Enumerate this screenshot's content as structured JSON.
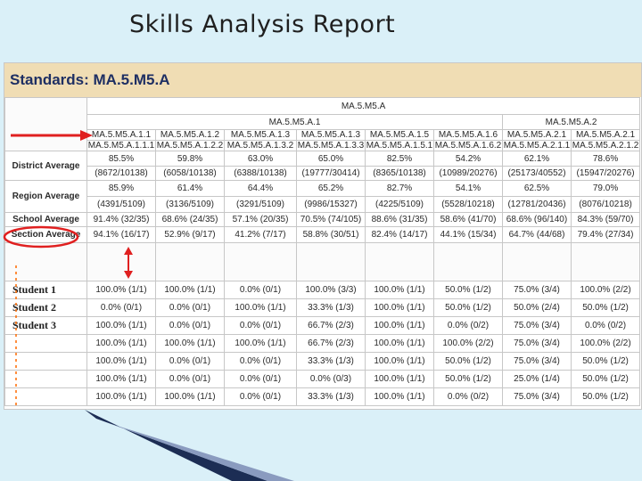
{
  "slide_title": "Skills Analysis Report",
  "standard_title": "Standards: MA.5.M5.A",
  "header": {
    "group": "MA.5.M5.A",
    "subgroups": [
      "MA.5.M5.A.1",
      "MA.5.M5.A.2"
    ],
    "columns": [
      {
        "code": "MA.5.M5.A.1.1",
        "sub": "MA.5.M5.A.1.1.1"
      },
      {
        "code": "MA.5.M5.A.1.2",
        "sub": "MA.5.M5.A.1.2.2"
      },
      {
        "code": "MA.5.M5.A.1.3",
        "sub": "MA.5.M5.A.1.3.2"
      },
      {
        "code": "MA.5.M5.A.1.3",
        "sub": "MA.5.M5.A.1.3.3"
      },
      {
        "code": "MA.5.M5.A.1.5",
        "sub": "MA.5.M5.A.1.5.1"
      },
      {
        "code": "MA.5.M5.A.1.6",
        "sub": "MA.5.M5.A.1.6.2"
      },
      {
        "code": "MA.5.M5.A.2.1",
        "sub": "MA.5.M5.A.2.1.1"
      },
      {
        "code": "MA.5.M5.A.2.1",
        "sub": "MA.5.M5.A.2.1.2"
      }
    ]
  },
  "district": {
    "label": "District Average",
    "pct": [
      "85.5%",
      "59.8%",
      "63.0%",
      "65.0%",
      "82.5%",
      "54.2%",
      "62.1%",
      "78.6%"
    ],
    "count": [
      "(8672/10138)",
      "(6058/10138)",
      "(6388/10138)",
      "(19777/30414)",
      "(8365/10138)",
      "(10989/20276)",
      "(25173/40552)",
      "(15947/20276)"
    ]
  },
  "region": {
    "label": "Region Average",
    "pct": [
      "85.9%",
      "61.4%",
      "64.4%",
      "65.2%",
      "82.7%",
      "54.1%",
      "62.5%",
      "79.0%"
    ],
    "count": [
      "(4391/5109)",
      "(3136/5109)",
      "(3291/5109)",
      "(9986/15327)",
      "(4225/5109)",
      "(5528/10218)",
      "(12781/20436)",
      "(8076/10218)"
    ]
  },
  "school": {
    "label": "School Average",
    "values": [
      "91.4% (32/35)",
      "68.6% (24/35)",
      "57.1% (20/35)",
      "70.5% (74/105)",
      "88.6% (31/35)",
      "58.6% (41/70)",
      "68.6% (96/140)",
      "84.3% (59/70)"
    ]
  },
  "section": {
    "label": "Section Average",
    "values": [
      "94.1% (16/17)",
      "52.9% (9/17)",
      "41.2% (7/17)",
      "58.8% (30/51)",
      "82.4% (14/17)",
      "44.1% (15/34)",
      "64.7% (44/68)",
      "79.4% (27/34)"
    ]
  },
  "students": [
    {
      "label": "Student 1",
      "values": [
        "100.0% (1/1)",
        "100.0% (1/1)",
        "0.0% (0/1)",
        "100.0% (3/3)",
        "100.0% (1/1)",
        "50.0% (1/2)",
        "75.0% (3/4)",
        "100.0% (2/2)"
      ]
    },
    {
      "label": "Student 2",
      "values": [
        "0.0% (0/1)",
        "0.0% (0/1)",
        "100.0% (1/1)",
        "33.3% (1/3)",
        "100.0% (1/1)",
        "50.0% (1/2)",
        "50.0% (2/4)",
        "50.0% (1/2)"
      ]
    },
    {
      "label": "Student 3",
      "values": [
        "100.0% (1/1)",
        "0.0% (0/1)",
        "0.0% (0/1)",
        "66.7% (2/3)",
        "100.0% (1/1)",
        "0.0% (0/2)",
        "75.0% (3/4)",
        "0.0% (0/2)"
      ]
    },
    {
      "label": "",
      "values": [
        "100.0% (1/1)",
        "100.0% (1/1)",
        "100.0% (1/1)",
        "66.7% (2/3)",
        "100.0% (1/1)",
        "100.0% (2/2)",
        "75.0% (3/4)",
        "100.0% (2/2)"
      ]
    },
    {
      "label": "",
      "values": [
        "100.0% (1/1)",
        "0.0% (0/1)",
        "0.0% (0/1)",
        "33.3% (1/3)",
        "100.0% (1/1)",
        "50.0% (1/2)",
        "75.0% (3/4)",
        "50.0% (1/2)"
      ]
    },
    {
      "label": "",
      "values": [
        "100.0% (1/1)",
        "0.0% (0/1)",
        "0.0% (0/1)",
        "0.0% (0/3)",
        "100.0% (1/1)",
        "50.0% (1/2)",
        "25.0% (1/4)",
        "50.0% (1/2)"
      ]
    },
    {
      "label": "",
      "values": [
        "100.0% (1/1)",
        "100.0% (1/1)",
        "0.0% (0/1)",
        "33.3% (1/3)",
        "100.0% (1/1)",
        "0.0% (0/2)",
        "75.0% (3/4)",
        "50.0% (1/2)"
      ]
    }
  ],
  "colors": {
    "arrow": "#e02020",
    "highlight": "#e02020",
    "banner": "#f0ddb4",
    "title_text": "#1e2f63",
    "slide_bg": "#daf0f8"
  }
}
